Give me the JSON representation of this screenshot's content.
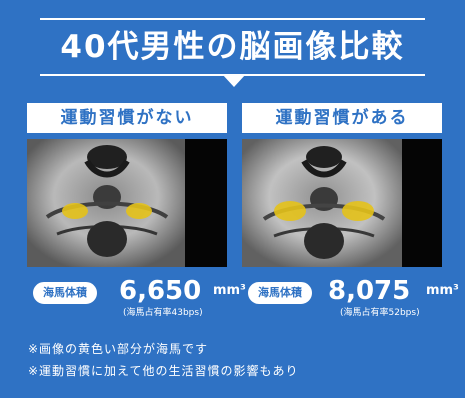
{
  "title": "40代男性の脳画像比較",
  "panels": [
    {
      "header": "運動習慣がない",
      "badge": "海馬体積",
      "value": "6,650",
      "unit": "mm³",
      "sub": "(海馬占有率43bps)"
    },
    {
      "header": "運動習慣がある",
      "badge": "海馬体積",
      "value": "8,075",
      "unit": "mm³",
      "sub": "(海馬占有率52bps)"
    }
  ],
  "notes": [
    "※画像の黄色い部分が海馬です",
    "※運動習慣に加えて他の生活習慣の影響もあり"
  ],
  "colors": {
    "background": "#2f72c4",
    "text": "#ffffff",
    "hippocampus": "#e4c21a"
  }
}
